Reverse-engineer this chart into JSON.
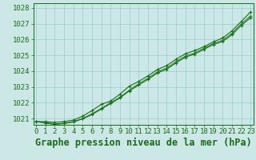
{
  "title": "Graphe pression niveau de la mer (hPa)",
  "xlabel_hours": [
    0,
    1,
    2,
    3,
    4,
    5,
    6,
    7,
    8,
    9,
    10,
    11,
    12,
    13,
    14,
    15,
    16,
    17,
    18,
    19,
    20,
    21,
    22,
    23
  ],
  "ylim": [
    1020.6,
    1028.3
  ],
  "yticks": [
    1021,
    1022,
    1023,
    1024,
    1025,
    1026,
    1027,
    1028
  ],
  "bg_color": "#cce8e6",
  "grid_color": "#99ccc8",
  "line_color_dark": "#1a6b1a",
  "line_color_mid": "#2a8c2a",
  "series1": [
    1020.8,
    1020.8,
    1020.75,
    1020.8,
    1020.9,
    1021.15,
    1021.5,
    1021.9,
    1022.1,
    1022.55,
    1023.05,
    1023.35,
    1023.7,
    1024.1,
    1024.35,
    1024.75,
    1025.1,
    1025.3,
    1025.55,
    1025.85,
    1026.1,
    1026.55,
    1027.15,
    1027.75
  ],
  "series2": [
    1020.8,
    1020.75,
    1020.65,
    1020.7,
    1020.8,
    1021.0,
    1021.3,
    1021.65,
    1022.0,
    1022.35,
    1022.8,
    1023.2,
    1023.55,
    1023.95,
    1024.2,
    1024.6,
    1024.95,
    1025.15,
    1025.45,
    1025.75,
    1025.95,
    1026.4,
    1027.0,
    1027.5
  ],
  "series3": [
    1020.8,
    1020.72,
    1020.62,
    1020.68,
    1020.78,
    1020.98,
    1021.25,
    1021.6,
    1021.95,
    1022.3,
    1022.75,
    1023.12,
    1023.48,
    1023.88,
    1024.12,
    1024.52,
    1024.88,
    1025.08,
    1025.38,
    1025.68,
    1025.88,
    1026.3,
    1026.9,
    1027.38
  ],
  "marker": "+",
  "marker_size": 3.5,
  "marker_lw": 0.8,
  "line_width": 0.8,
  "title_fontsize": 8.5,
  "tick_fontsize": 6.5
}
